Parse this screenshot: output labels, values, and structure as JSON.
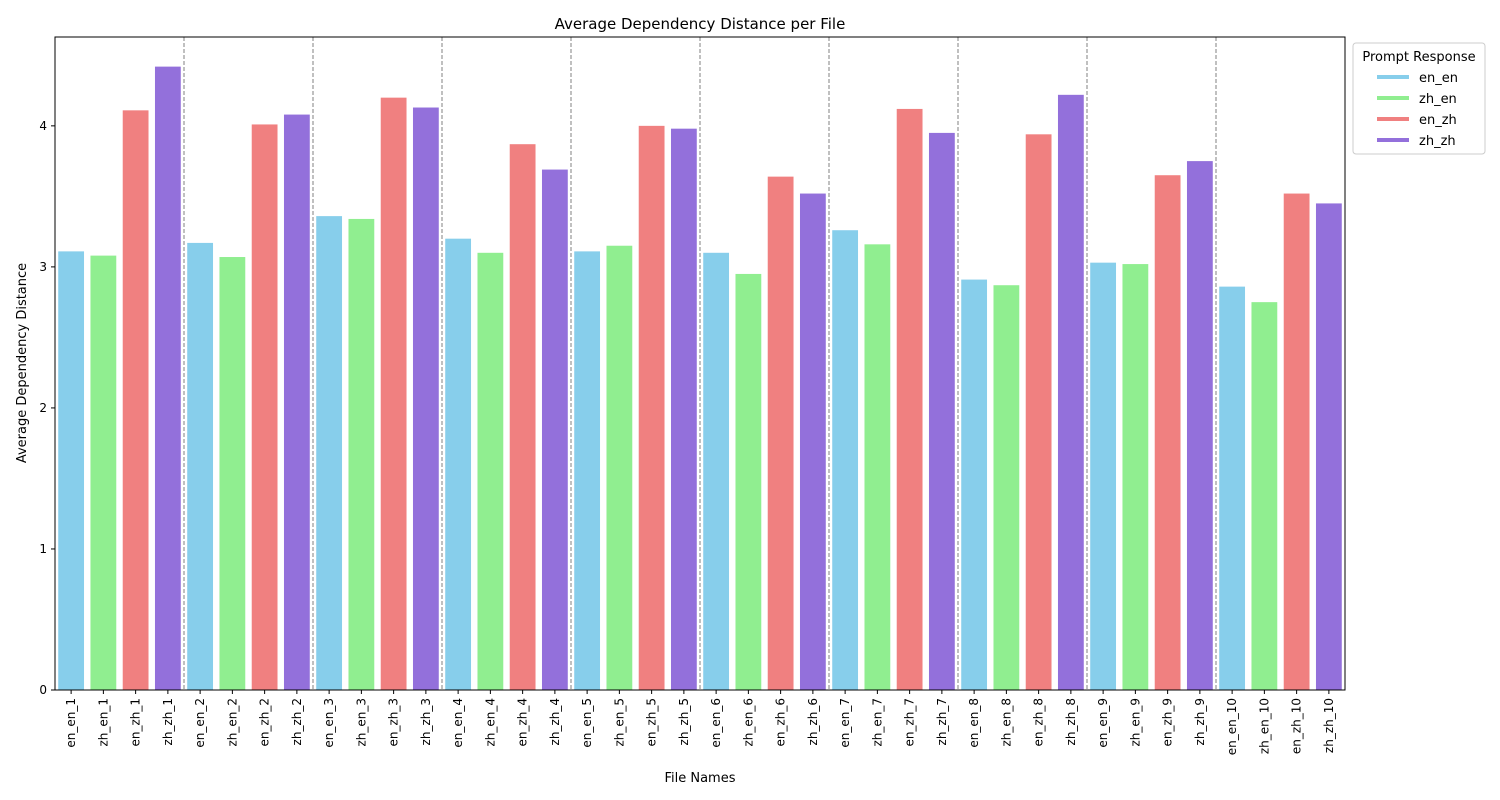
{
  "chart_data": {
    "type": "bar",
    "title": "Average Dependency Distance per File",
    "xlabel": "File Names",
    "ylabel": "Average Dependency Distance",
    "ylim": [
      0,
      4.63
    ],
    "yticks": [
      0,
      1,
      2,
      3,
      4
    ],
    "grid": false,
    "group_separators": "dashed-vertical-between-groups",
    "legend": {
      "title": "Prompt Response",
      "placement": "outside-top-right",
      "entries": [
        {
          "name": "en_en",
          "color": "#87CEEB"
        },
        {
          "name": "zh_en",
          "color": "#90EE90"
        },
        {
          "name": "en_zh",
          "color": "#F08080"
        },
        {
          "name": "zh_zh",
          "color": "#9370DB"
        }
      ]
    },
    "bars": [
      {
        "label": "en_en_1",
        "group": "en_en",
        "value": 3.11
      },
      {
        "label": "zh_en_1",
        "group": "zh_en",
        "value": 3.08
      },
      {
        "label": "en_zh_1",
        "group": "en_zh",
        "value": 4.11
      },
      {
        "label": "zh_zh_1",
        "group": "zh_zh",
        "value": 4.42
      },
      {
        "label": "en_en_2",
        "group": "en_en",
        "value": 3.17
      },
      {
        "label": "zh_en_2",
        "group": "zh_en",
        "value": 3.07
      },
      {
        "label": "en_zh_2",
        "group": "en_zh",
        "value": 4.01
      },
      {
        "label": "zh_zh_2",
        "group": "zh_zh",
        "value": 4.08
      },
      {
        "label": "en_en_3",
        "group": "en_en",
        "value": 3.36
      },
      {
        "label": "zh_en_3",
        "group": "zh_en",
        "value": 3.34
      },
      {
        "label": "en_zh_3",
        "group": "en_zh",
        "value": 4.2
      },
      {
        "label": "zh_zh_3",
        "group": "zh_zh",
        "value": 4.13
      },
      {
        "label": "en_en_4",
        "group": "en_en",
        "value": 3.2
      },
      {
        "label": "zh_en_4",
        "group": "zh_en",
        "value": 3.1
      },
      {
        "label": "en_zh_4",
        "group": "en_zh",
        "value": 3.87
      },
      {
        "label": "zh_zh_4",
        "group": "zh_zh",
        "value": 3.69
      },
      {
        "label": "en_en_5",
        "group": "en_en",
        "value": 3.11
      },
      {
        "label": "zh_en_5",
        "group": "zh_en",
        "value": 3.15
      },
      {
        "label": "en_zh_5",
        "group": "en_zh",
        "value": 4.0
      },
      {
        "label": "zh_zh_5",
        "group": "zh_zh",
        "value": 3.98
      },
      {
        "label": "en_en_6",
        "group": "en_en",
        "value": 3.1
      },
      {
        "label": "zh_en_6",
        "group": "zh_en",
        "value": 2.95
      },
      {
        "label": "en_zh_6",
        "group": "en_zh",
        "value": 3.64
      },
      {
        "label": "zh_zh_6",
        "group": "zh_zh",
        "value": 3.52
      },
      {
        "label": "en_en_7",
        "group": "en_en",
        "value": 3.26
      },
      {
        "label": "zh_en_7",
        "group": "zh_en",
        "value": 3.16
      },
      {
        "label": "en_zh_7",
        "group": "en_zh",
        "value": 4.12
      },
      {
        "label": "zh_zh_7",
        "group": "zh_zh",
        "value": 3.95
      },
      {
        "label": "en_en_8",
        "group": "en_en",
        "value": 2.91
      },
      {
        "label": "zh_en_8",
        "group": "zh_en",
        "value": 2.87
      },
      {
        "label": "en_zh_8",
        "group": "en_zh",
        "value": 3.94
      },
      {
        "label": "zh_zh_8",
        "group": "zh_zh",
        "value": 4.22
      },
      {
        "label": "en_en_9",
        "group": "en_en",
        "value": 3.03
      },
      {
        "label": "zh_en_9",
        "group": "zh_en",
        "value": 3.02
      },
      {
        "label": "en_zh_9",
        "group": "en_zh",
        "value": 3.65
      },
      {
        "label": "zh_zh_9",
        "group": "zh_zh",
        "value": 3.75
      },
      {
        "label": "en_en_10",
        "group": "en_en",
        "value": 2.86
      },
      {
        "label": "zh_en_10",
        "group": "zh_en",
        "value": 2.75
      },
      {
        "label": "en_zh_10",
        "group": "en_zh",
        "value": 3.52
      },
      {
        "label": "zh_zh_10",
        "group": "zh_zh",
        "value": 3.45
      }
    ]
  }
}
